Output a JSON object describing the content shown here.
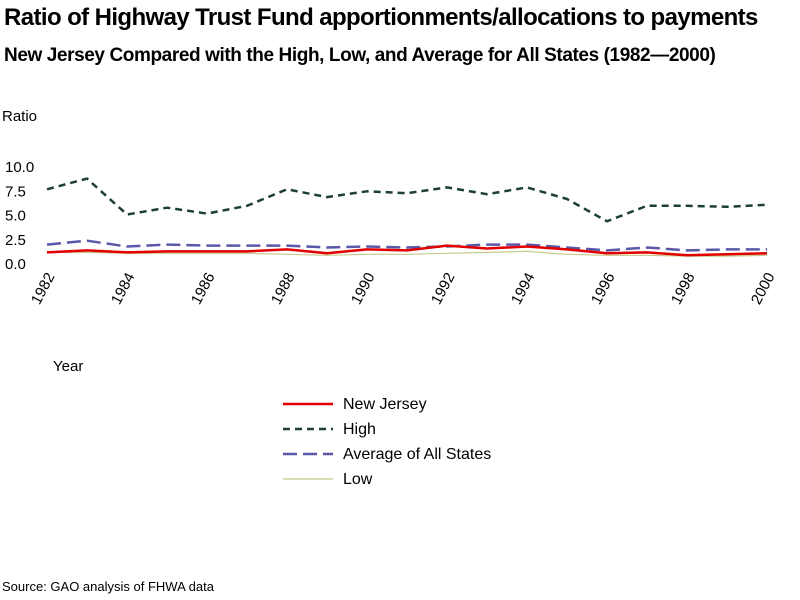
{
  "source": "Source: GAO analysis of FHWA data",
  "chart_data": {
    "type": "line",
    "title": "Ratio of Highway Trust Fund apportionments/allocations to payments",
    "subtitle": "New Jersey Compared with the High, Low, and Average for All States (1982—2000)",
    "xlabel": "Year",
    "ylabel": "Ratio",
    "xlim": [
      1982,
      2000
    ],
    "ylim": [
      0,
      10
    ],
    "yticks": [
      "0.0",
      "2.5",
      "5.0",
      "7.5",
      "10.0"
    ],
    "xticks": [
      "1982",
      "1984",
      "1986",
      "1988",
      "1990",
      "1992",
      "1994",
      "1996",
      "1998",
      "2000"
    ],
    "grid": false,
    "legend": "below",
    "x": [
      1982,
      1983,
      1984,
      1985,
      1986,
      1987,
      1988,
      1989,
      1990,
      1991,
      1992,
      1993,
      1994,
      1995,
      1996,
      1997,
      1998,
      1999,
      2000
    ],
    "series": [
      {
        "name": "New Jersey",
        "color": "#e00000",
        "dash": "solid",
        "values": [
          1.2,
          1.4,
          1.2,
          1.3,
          1.3,
          1.3,
          1.5,
          1.1,
          1.5,
          1.4,
          1.9,
          1.6,
          1.8,
          1.5,
          1.1,
          1.2,
          0.9,
          1.0,
          1.1
        ]
      },
      {
        "name": "High",
        "color": "#1e4030",
        "dash": "short",
        "values": [
          7.7,
          8.8,
          5.1,
          5.8,
          5.2,
          6.0,
          7.7,
          6.9,
          7.5,
          7.3,
          7.9,
          7.2,
          7.9,
          6.7,
          4.4,
          6.0,
          6.0,
          5.9,
          6.1
        ]
      },
      {
        "name": "Average of All States",
        "color": "#5a58a8",
        "dash": "long",
        "values": [
          2.0,
          2.4,
          1.8,
          2.0,
          1.9,
          1.9,
          1.9,
          1.7,
          1.8,
          1.7,
          1.8,
          2.0,
          2.0,
          1.7,
          1.4,
          1.7,
          1.4,
          1.5,
          1.5
        ]
      },
      {
        "name": "Low",
        "color": "#c8c88a",
        "dash": "solid",
        "values": [
          1.2,
          1.2,
          1.1,
          1.1,
          1.1,
          1.1,
          1.0,
          0.9,
          1.0,
          1.0,
          1.1,
          1.2,
          1.3,
          1.0,
          0.9,
          0.9,
          0.8,
          0.8,
          0.9
        ]
      }
    ]
  }
}
